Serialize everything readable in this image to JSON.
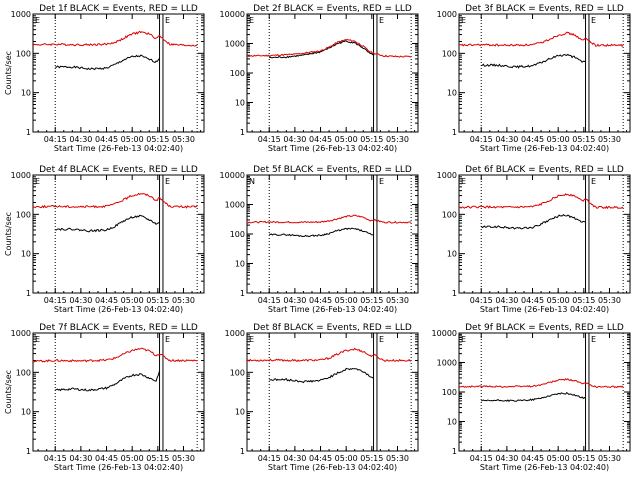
{
  "colors": {
    "events": "#000000",
    "lld": "#dd0000",
    "background": "#ffffff",
    "axes": "#000000"
  },
  "chart_data": [
    {
      "type": "line",
      "title": "Det 1f BLACK = Events, RED = LLD",
      "xlabel": "Start Time (26-Feb-13 04:02:40)",
      "ylabel": "Counts/sec",
      "xlim": [
        "04:02",
        "05:42"
      ],
      "ylim": [
        1,
        1000
      ],
      "yscale": "log",
      "xticks": [
        "04:15",
        "04:30",
        "04:45",
        "05:00",
        "05:15",
        "05:30"
      ],
      "yticks": [
        "1",
        "10",
        "100",
        "1000"
      ],
      "marker_letters": [
        "E",
        "E"
      ],
      "dotted_lines": [
        "04:15",
        "05:38"
      ],
      "solid_lines": [
        "05:16",
        "05:18"
      ],
      "series": [
        {
          "name": "BLACK = Events",
          "x": [
            "04:15",
            "04:25",
            "04:35",
            "04:45",
            "04:50",
            "04:55",
            "05:00",
            "05:05",
            "05:10",
            "05:14",
            "05:16"
          ],
          "values": [
            45,
            45,
            40,
            42,
            52,
            68,
            82,
            86,
            70,
            60,
            75
          ]
        },
        {
          "name": "RED = LLD",
          "x": [
            "04:02",
            "04:15",
            "04:30",
            "04:45",
            "04:50",
            "04:55",
            "05:00",
            "05:05",
            "05:10",
            "05:14",
            "05:16",
            "05:22",
            "05:30",
            "05:38"
          ],
          "values": [
            165,
            170,
            165,
            170,
            190,
            240,
            310,
            350,
            310,
            240,
            280,
            170,
            160,
            160
          ]
        }
      ]
    },
    {
      "type": "line",
      "title": "Det 2f BLACK = Events, RED = LLD",
      "xlabel": "Start Time (26-Feb-13 04:02:40)",
      "ylabel": "",
      "xlim": [
        "04:02",
        "05:42"
      ],
      "ylim": [
        1,
        10000
      ],
      "yscale": "log",
      "xticks": [
        "04:15",
        "04:30",
        "04:45",
        "05:00",
        "05:15",
        "05:30"
      ],
      "yticks": [
        "1",
        "10",
        "100",
        "1000",
        "10000"
      ],
      "marker_letters": [
        "E",
        "E"
      ],
      "dotted_lines": [
        "04:15",
        "05:38"
      ],
      "solid_lines": [
        "05:16",
        "05:18"
      ],
      "series": [
        {
          "name": "BLACK = Events",
          "x": [
            "04:15",
            "04:25",
            "04:35",
            "04:45",
            "04:50",
            "04:55",
            "05:00",
            "05:05",
            "05:10",
            "05:14",
            "05:16"
          ],
          "values": [
            330,
            350,
            400,
            520,
            700,
            1000,
            1200,
            1050,
            700,
            450,
            400
          ]
        },
        {
          "name": "RED = LLD",
          "x": [
            "04:02",
            "04:15",
            "04:30",
            "04:45",
            "04:50",
            "04:55",
            "05:00",
            "05:05",
            "05:10",
            "05:14",
            "05:16",
            "05:22",
            "05:30",
            "05:38"
          ],
          "values": [
            380,
            390,
            430,
            560,
            750,
            1100,
            1350,
            1200,
            800,
            520,
            470,
            380,
            360,
            360
          ]
        }
      ]
    },
    {
      "type": "line",
      "title": "Det 3f BLACK = Events, RED = LLD",
      "xlabel": "Start Time (26-Feb-13 04:02:40)",
      "ylabel": "",
      "xlim": [
        "04:02",
        "05:42"
      ],
      "ylim": [
        1,
        1000
      ],
      "yscale": "log",
      "xticks": [
        "04:15",
        "04:30",
        "04:45",
        "05:00",
        "05:15",
        "05:30"
      ],
      "yticks": [
        "1",
        "10",
        "100",
        "1000"
      ],
      "marker_letters": [
        "E",
        "E"
      ],
      "dotted_lines": [
        "04:15",
        "05:38"
      ],
      "solid_lines": [
        "05:16",
        "05:18"
      ],
      "series": [
        {
          "name": "BLACK = Events",
          "x": [
            "04:15",
            "04:25",
            "04:35",
            "04:45",
            "04:50",
            "04:55",
            "05:00",
            "05:05",
            "05:10",
            "05:14",
            "05:16"
          ],
          "values": [
            50,
            50,
            45,
            48,
            58,
            72,
            88,
            92,
            78,
            60,
            65
          ]
        },
        {
          "name": "RED = LLD",
          "x": [
            "04:02",
            "04:15",
            "04:30",
            "04:45",
            "04:50",
            "04:55",
            "05:00",
            "05:05",
            "05:10",
            "05:14",
            "05:16",
            "05:22",
            "05:30",
            "05:38"
          ],
          "values": [
            160,
            165,
            160,
            165,
            185,
            230,
            290,
            330,
            290,
            210,
            240,
            160,
            160,
            160
          ]
        }
      ]
    },
    {
      "type": "line",
      "title": "Det 4f BLACK = Events, RED = LLD",
      "xlabel": "Start Time (26-Feb-13 04:02:40)",
      "ylabel": "Counts/sec",
      "xlim": [
        "04:02",
        "05:42"
      ],
      "ylim": [
        1,
        1000
      ],
      "yscale": "log",
      "xticks": [
        "04:15",
        "04:30",
        "04:45",
        "05:00",
        "05:15",
        "05:30"
      ],
      "yticks": [
        "1",
        "10",
        "100",
        "1000"
      ],
      "marker_letters": [
        "E",
        "E"
      ],
      "dotted_lines": [
        "04:15",
        "05:38"
      ],
      "solid_lines": [
        "05:16",
        "05:18"
      ],
      "series": [
        {
          "name": "BLACK = Events",
          "x": [
            "04:15",
            "04:25",
            "04:35",
            "04:45",
            "04:50",
            "04:55",
            "05:00",
            "05:05",
            "05:10",
            "05:14",
            "05:16"
          ],
          "values": [
            42,
            42,
            38,
            40,
            50,
            68,
            85,
            90,
            72,
            58,
            60
          ]
        },
        {
          "name": "RED = LLD",
          "x": [
            "04:02",
            "04:15",
            "04:30",
            "04:45",
            "04:50",
            "04:55",
            "05:00",
            "05:05",
            "05:10",
            "05:14",
            "05:16",
            "05:22",
            "05:30",
            "05:38"
          ],
          "values": [
            155,
            160,
            155,
            160,
            185,
            235,
            300,
            340,
            300,
            230,
            260,
            160,
            155,
            155
          ]
        }
      ]
    },
    {
      "type": "line",
      "title": "Det 5f BLACK = Events, RED = LLD",
      "xlabel": "Start Time (26-Feb-13 04:02:40)",
      "ylabel": "",
      "xlim": [
        "04:02",
        "05:42"
      ],
      "ylim": [
        1,
        10000
      ],
      "yscale": "log",
      "xticks": [
        "04:15",
        "04:30",
        "04:45",
        "05:00",
        "05:15",
        "05:30"
      ],
      "yticks": [
        "1",
        "10",
        "100",
        "1000",
        "10000"
      ],
      "marker_letters": [
        "N",
        "E"
      ],
      "dotted_lines": [
        "04:15",
        "05:38"
      ],
      "solid_lines": [
        "05:16",
        "05:18"
      ],
      "series": [
        {
          "name": "BLACK = Events",
          "x": [
            "04:15",
            "04:25",
            "04:35",
            "04:45",
            "04:50",
            "04:55",
            "05:00",
            "05:05",
            "05:10",
            "05:14",
            "05:16"
          ],
          "values": [
            95,
            95,
            85,
            90,
            105,
            130,
            150,
            150,
            125,
            100,
            95
          ]
        },
        {
          "name": "RED = LLD",
          "x": [
            "04:02",
            "04:15",
            "04:30",
            "04:45",
            "04:50",
            "04:55",
            "05:00",
            "05:05",
            "05:10",
            "05:14",
            "05:16",
            "05:22",
            "05:30",
            "05:38"
          ],
          "values": [
            250,
            255,
            250,
            255,
            280,
            330,
            390,
            420,
            370,
            290,
            300,
            250,
            250,
            250
          ]
        }
      ]
    },
    {
      "type": "line",
      "title": "Det 6f BLACK = Events, RED = LLD",
      "xlabel": "Start Time (26-Feb-13 04:02:40)",
      "ylabel": "",
      "xlim": [
        "04:02",
        "05:42"
      ],
      "ylim": [
        1,
        1000
      ],
      "yscale": "log",
      "xticks": [
        "04:15",
        "04:30",
        "04:45",
        "05:00",
        "05:15",
        "05:30"
      ],
      "yticks": [
        "1",
        "10",
        "100",
        "1000"
      ],
      "marker_letters": [
        "E",
        "E"
      ],
      "dotted_lines": [
        "04:15",
        "05:38"
      ],
      "solid_lines": [
        "05:16",
        "05:18"
      ],
      "series": [
        {
          "name": "BLACK = Events",
          "x": [
            "04:15",
            "04:25",
            "04:35",
            "04:45",
            "04:50",
            "04:55",
            "05:00",
            "05:05",
            "05:10",
            "05:14",
            "05:16"
          ],
          "values": [
            48,
            48,
            44,
            46,
            56,
            72,
            90,
            95,
            78,
            62,
            65
          ]
        },
        {
          "name": "RED = LLD",
          "x": [
            "04:02",
            "04:15",
            "04:30",
            "04:45",
            "04:50",
            "04:55",
            "05:00",
            "05:05",
            "05:10",
            "05:14",
            "05:16",
            "05:22",
            "05:30",
            "05:38"
          ],
          "values": [
            150,
            155,
            150,
            155,
            180,
            230,
            290,
            330,
            290,
            220,
            250,
            150,
            150,
            150
          ]
        }
      ]
    },
    {
      "type": "line",
      "title": "Det 7f BLACK = Events, RED = LLD",
      "xlabel": "Start Time (26-Feb-13 04:02:40)",
      "ylabel": "Counts/sec",
      "xlim": [
        "04:02",
        "05:42"
      ],
      "ylim": [
        1,
        1000
      ],
      "yscale": "log",
      "xticks": [
        "04:15",
        "04:30",
        "04:45",
        "05:00",
        "05:15",
        "05:30"
      ],
      "yticks": [
        "1",
        "10",
        "100",
        "1000"
      ],
      "marker_letters": [
        "E",
        "E"
      ],
      "dotted_lines": [
        "04:15",
        "05:38"
      ],
      "solid_lines": [
        "05:16",
        "05:18"
      ],
      "series": [
        {
          "name": "BLACK = Events",
          "x": [
            "04:15",
            "04:25",
            "04:35",
            "04:45",
            "04:50",
            "04:55",
            "05:00",
            "05:05",
            "05:10",
            "05:14",
            "05:16"
          ],
          "values": [
            35,
            38,
            35,
            40,
            50,
            68,
            85,
            90,
            72,
            60,
            110
          ]
        },
        {
          "name": "RED = LLD",
          "x": [
            "04:02",
            "04:15",
            "04:30",
            "04:45",
            "04:50",
            "04:55",
            "05:00",
            "05:05",
            "05:10",
            "05:14",
            "05:16",
            "05:22",
            "05:30",
            "05:38"
          ],
          "values": [
            190,
            200,
            195,
            205,
            230,
            290,
            360,
            400,
            350,
            270,
            300,
            200,
            200,
            200
          ]
        }
      ]
    },
    {
      "type": "line",
      "title": "Det 8f BLACK = Events, RED = LLD",
      "xlabel": "Start Time (26-Feb-13 04:02:40)",
      "ylabel": "",
      "xlim": [
        "04:02",
        "05:42"
      ],
      "ylim": [
        1,
        1000
      ],
      "yscale": "log",
      "xticks": [
        "04:15",
        "04:30",
        "04:45",
        "05:00",
        "05:15",
        "05:30"
      ],
      "yticks": [
        "1",
        "10",
        "100",
        "1000"
      ],
      "marker_letters": [
        "E",
        "E"
      ],
      "dotted_lines": [
        "04:15",
        "05:38"
      ],
      "solid_lines": [
        "05:16",
        "05:18"
      ],
      "series": [
        {
          "name": "BLACK = Events",
          "x": [
            "04:15",
            "04:25",
            "04:35",
            "04:45",
            "04:50",
            "04:55",
            "05:00",
            "05:05",
            "05:10",
            "05:14",
            "05:16"
          ],
          "values": [
            65,
            65,
            58,
            62,
            75,
            95,
            120,
            125,
            105,
            80,
            70
          ]
        },
        {
          "name": "RED = LLD",
          "x": [
            "04:02",
            "04:15",
            "04:30",
            "04:45",
            "04:50",
            "04:55",
            "05:00",
            "05:05",
            "05:10",
            "05:14",
            "05:16",
            "05:22",
            "05:30",
            "05:38"
          ],
          "values": [
            200,
            205,
            200,
            205,
            230,
            290,
            360,
            390,
            340,
            260,
            280,
            200,
            200,
            200
          ]
        }
      ]
    },
    {
      "type": "line",
      "title": "Det 9f BLACK = Events, RED = LLD",
      "xlabel": "Start Time (26-Feb-13 04:02:40)",
      "ylabel": "",
      "xlim": [
        "04:02",
        "05:42"
      ],
      "ylim": [
        1,
        10000
      ],
      "yscale": "log",
      "xticks": [
        "04:15",
        "04:30",
        "04:45",
        "05:00",
        "05:15",
        "05:30"
      ],
      "yticks": [
        "1",
        "10",
        "100",
        "1000",
        "10000"
      ],
      "marker_letters": [
        "E",
        "E"
      ],
      "dotted_lines": [
        "04:15",
        "05:38"
      ],
      "solid_lines": [
        "05:16",
        "05:18"
      ],
      "series": [
        {
          "name": "BLACK = Events",
          "x": [
            "04:15",
            "04:25",
            "04:35",
            "04:45",
            "04:50",
            "04:55",
            "05:00",
            "05:05",
            "05:10",
            "05:14",
            "05:16"
          ],
          "values": [
            50,
            52,
            50,
            55,
            62,
            75,
            88,
            90,
            78,
            65,
            60
          ]
        },
        {
          "name": "RED = LLD",
          "x": [
            "04:02",
            "04:15",
            "04:30",
            "04:45",
            "04:50",
            "04:55",
            "05:00",
            "05:05",
            "05:10",
            "05:14",
            "05:16",
            "05:22",
            "05:30",
            "05:38"
          ],
          "values": [
            150,
            155,
            152,
            158,
            175,
            210,
            250,
            270,
            240,
            190,
            200,
            150,
            150,
            150
          ]
        }
      ]
    }
  ]
}
